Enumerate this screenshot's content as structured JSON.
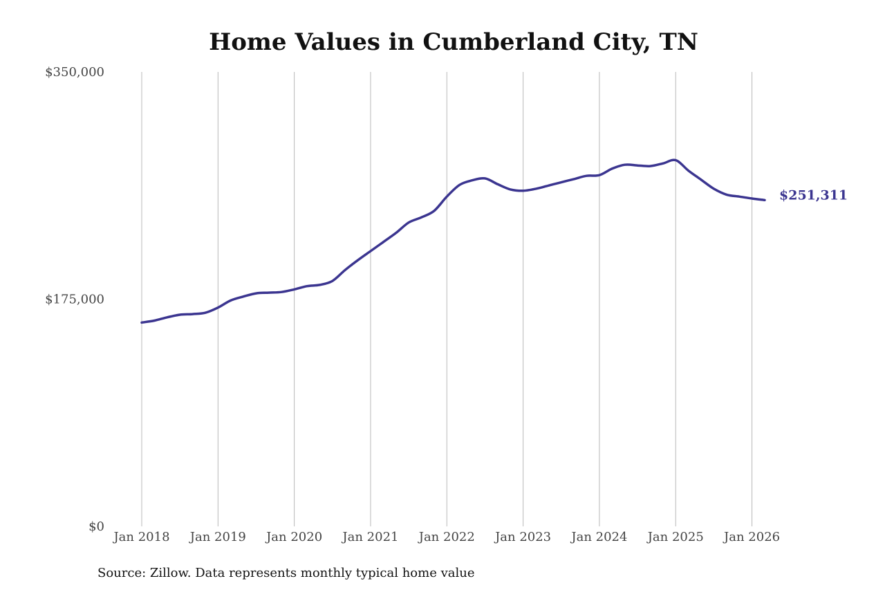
{
  "chart_data": {
    "type": "line",
    "title": "Home Values in Cumberland City, TN",
    "source": "Source: Zillow. Data represents monthly typical home value",
    "xlabel": "",
    "ylabel": "",
    "ylim": [
      0,
      350000
    ],
    "y_ticks": [
      0,
      175000,
      350000
    ],
    "y_tick_labels": [
      "$0",
      "$175,000",
      "$350,000"
    ],
    "x_tick_labels": [
      "Jan 2018",
      "Jan 2019",
      "Jan 2020",
      "Jan 2021",
      "Jan 2022",
      "Jan 2023",
      "Jan 2024",
      "Jan 2025",
      "Jan 2026"
    ],
    "x_tick_years": [
      2018,
      2019,
      2020,
      2021,
      2022,
      2023,
      2024,
      2025,
      2026
    ],
    "xlim": [
      2018.0,
      2026.167
    ],
    "grid": {
      "vertical": true,
      "horizontal": false
    },
    "legend": "none",
    "colors": {
      "line": "#3b3590",
      "grid": "#b8b8b8",
      "title": "#111111",
      "tick_text": "#444444"
    },
    "series": [
      {
        "x": [
          2018.0,
          2018.167,
          2018.333,
          2018.5,
          2018.667,
          2018.833,
          2019.0,
          2019.167,
          2019.333,
          2019.5,
          2019.667,
          2019.833,
          2020.0,
          2020.167,
          2020.333,
          2020.5,
          2020.667,
          2020.833,
          2021.0,
          2021.167,
          2021.333,
          2021.5,
          2021.667,
          2021.833,
          2022.0,
          2022.167,
          2022.333,
          2022.5,
          2022.667,
          2022.833,
          2023.0,
          2023.167,
          2023.333,
          2023.5,
          2023.667,
          2023.833,
          2024.0,
          2024.167,
          2024.333,
          2024.5,
          2024.667,
          2024.833,
          2025.0,
          2025.167,
          2025.333,
          2025.5,
          2025.667,
          2025.833,
          2026.0,
          2026.167
        ],
        "values": [
          157000,
          158500,
          161000,
          163000,
          163500,
          164500,
          168500,
          174000,
          177000,
          179500,
          180000,
          180500,
          182500,
          185000,
          186000,
          189000,
          197500,
          205000,
          212000,
          219000,
          226000,
          234000,
          238000,
          243000,
          254000,
          263000,
          266500,
          268000,
          263500,
          259500,
          258500,
          260000,
          262500,
          265000,
          267500,
          270000,
          270500,
          275500,
          278500,
          278000,
          277500,
          279500,
          282000,
          274000,
          267000,
          260000,
          255500,
          254000,
          252500,
          251311
        ]
      }
    ],
    "end_label": "$251,311"
  }
}
